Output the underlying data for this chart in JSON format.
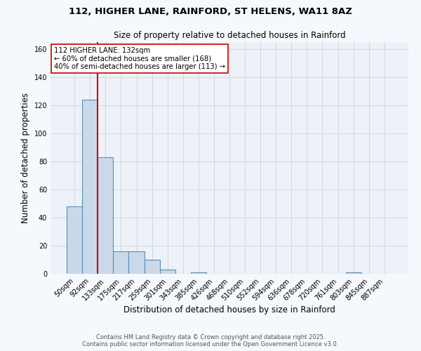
{
  "title_line1": "112, HIGHER LANE, RAINFORD, ST HELENS, WA11 8AZ",
  "title_line2": "Size of property relative to detached houses in Rainford",
  "xlabel": "Distribution of detached houses by size in Rainford",
  "ylabel": "Number of detached properties",
  "bar_values": [
    48,
    124,
    83,
    16,
    16,
    10,
    3,
    0,
    1,
    0,
    0,
    0,
    0,
    0,
    0,
    0,
    0,
    0,
    1,
    0,
    0
  ],
  "bin_labels": [
    "50sqm",
    "92sqm",
    "133sqm",
    "175sqm",
    "217sqm",
    "259sqm",
    "301sqm",
    "343sqm",
    "385sqm",
    "426sqm",
    "468sqm",
    "510sqm",
    "552sqm",
    "594sqm",
    "636sqm",
    "678sqm",
    "720sqm",
    "761sqm",
    "803sqm",
    "845sqm",
    "887sqm"
  ],
  "bar_color": "#c9d9ea",
  "bar_edge_color": "#5b8db8",
  "vline_x_idx": 2,
  "vline_color": "#cc0000",
  "annotation_text": "112 HIGHER LANE: 132sqm\n← 60% of detached houses are smaller (168)\n40% of semi-detached houses are larger (113) →",
  "annotation_box_color": "#ffffff",
  "annotation_box_edge": "#cc0000",
  "grid_color": "#c8d8e8",
  "background_color": "#eef2f8",
  "fig_background_color": "#f5f8fc",
  "ylim": [
    0,
    165
  ],
  "yticks": [
    0,
    20,
    40,
    60,
    80,
    100,
    120,
    140,
    160
  ],
  "footer_line1": "Contains HM Land Registry data © Crown copyright and database right 2025.",
  "footer_line2": "Contains public sector information licensed under the Open Government Licence v3.0."
}
